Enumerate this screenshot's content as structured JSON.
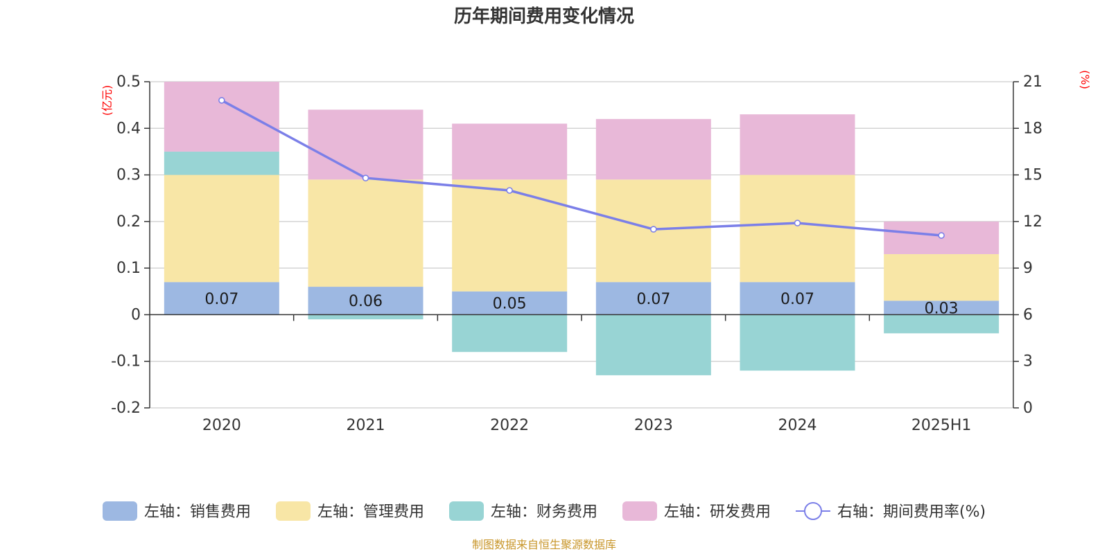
{
  "chart_data": {
    "type": "bar",
    "title": "历年期间费用变化情况",
    "categories": [
      "2020",
      "2021",
      "2022",
      "2023",
      "2024",
      "2025H1"
    ],
    "left_axis": {
      "unit": "(亿元)",
      "min": -0.2,
      "max": 0.5,
      "ticks": [
        0.5,
        0.4,
        0.3,
        0.2,
        0.1,
        0,
        -0.1,
        -0.2
      ],
      "tick_labels": [
        "0.5",
        "0.4",
        "0.3",
        "0.2",
        "0.1",
        "0",
        "-0.1",
        "-0.2"
      ]
    },
    "right_axis": {
      "unit": "(%)",
      "min": 0,
      "max": 21,
      "ticks": [
        21,
        18,
        15,
        12,
        9,
        6,
        3,
        0
      ],
      "tick_labels": [
        "21",
        "18",
        "15",
        "12",
        "9",
        "6",
        "3",
        "0"
      ]
    },
    "series": [
      {
        "name": "左轴：销售费用",
        "type": "bar",
        "color": "#9db8e2",
        "values": [
          0.07,
          0.06,
          0.05,
          0.07,
          0.07,
          0.03
        ],
        "labels": [
          "0.07",
          "0.06",
          "0.05",
          "0.07",
          "0.07",
          "0.03"
        ]
      },
      {
        "name": "左轴：管理费用",
        "type": "bar",
        "color": "#f8e6a6",
        "values": [
          0.23,
          0.23,
          0.24,
          0.22,
          0.23,
          0.1
        ]
      },
      {
        "name": "左轴：财务费用",
        "type": "bar",
        "color": "#98d4d4",
        "values": [
          0.05,
          -0.01,
          -0.08,
          -0.13,
          -0.12,
          -0.04
        ]
      },
      {
        "name": "左轴：研发费用",
        "type": "bar",
        "color": "#e8b8d8",
        "values": [
          0.15,
          0.15,
          0.12,
          0.13,
          0.13,
          0.07
        ]
      },
      {
        "name": "右轴：期间费用率(%)",
        "type": "line",
        "color": "#7b7fe8",
        "values": [
          19.8,
          14.8,
          14.0,
          11.5,
          11.9,
          11.1
        ]
      }
    ],
    "grid": true,
    "legend": "bottom"
  },
  "source_text": "制图数据来自恒生聚源数据库"
}
